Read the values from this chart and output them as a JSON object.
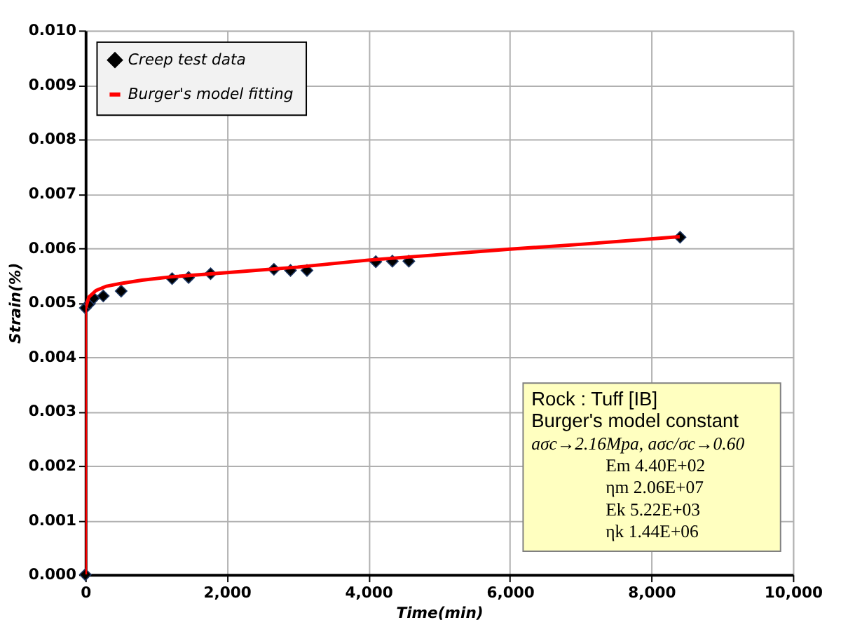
{
  "chart_data": {
    "type": "scatter",
    "xlabel": "Time(min)",
    "ylabel": "Strain(%)",
    "series": [
      {
        "name": "Creep test data",
        "type": "scatter",
        "color": "#000000",
        "marker": "diamond",
        "x": [
          0,
          0,
          58,
          117,
          253,
          506,
          1226,
          1459,
          1770,
          2665,
          2899,
          3132,
          4105,
          4339,
          4572,
          8405
        ],
        "values": [
          0,
          0.0049,
          0.00498,
          0.00508,
          0.00512,
          0.00521,
          0.00544,
          0.00546,
          0.00553,
          0.00561,
          0.00559,
          0.00559,
          0.00575,
          0.00576,
          0.00576,
          0.0062
        ]
      },
      {
        "name": "Burger's model fitting",
        "type": "line",
        "color": "#ff0000",
        "marker": "none",
        "line_style": "solid",
        "x": [
          0,
          0,
          50,
          150,
          300,
          500,
          800,
          1200,
          2000,
          3000,
          4000,
          5000,
          6000,
          7000,
          8400
        ],
        "values": [
          0,
          0.00488,
          0.0051,
          0.00522,
          0.0053,
          0.00535,
          0.00541,
          0.00547,
          0.00555,
          0.00565,
          0.00578,
          0.00588,
          0.00598,
          0.00607,
          0.00621
        ]
      }
    ],
    "xlim": [
      0,
      10000
    ],
    "xticks": [
      0,
      {
        "value": 2000,
        "label": "2,000"
      },
      {
        "value": 4000,
        "label": "4,000"
      },
      {
        "value": 6000,
        "label": "6,000"
      },
      {
        "value": 8000,
        "label": "8,000"
      },
      {
        "value": 10000,
        "label": "10,000"
      }
    ],
    "ylim": [
      0,
      0.01
    ],
    "yticks": [
      {
        "value": 0,
        "label": "0.000"
      },
      {
        "value": 0.001,
        "label": "0.001"
      },
      {
        "value": 0.002,
        "label": "0.002"
      },
      {
        "value": 0.003,
        "label": "0.003"
      },
      {
        "value": 0.004,
        "label": "0.004"
      },
      {
        "value": 0.005,
        "label": "0.005"
      },
      {
        "value": 0.006,
        "label": "0.006"
      },
      {
        "value": 0.007,
        "label": "0.007"
      },
      {
        "value": 0.008,
        "label": "0.008"
      },
      {
        "value": 0.009,
        "label": "0.009"
      },
      {
        "value": 0.01,
        "label": "0.010"
      }
    ],
    "grid": true,
    "legend": "top left",
    "annotations": [
      "Rock : Tuff [IB]",
      "Burger's model constant",
      "aσc→2.16Mpa, aσc/σc→0.60",
      "Em   4.40E+02",
      "ηm   2.06E+07",
      "Ek   5.22E+03",
      "ηk   1.44E+06"
    ]
  }
}
